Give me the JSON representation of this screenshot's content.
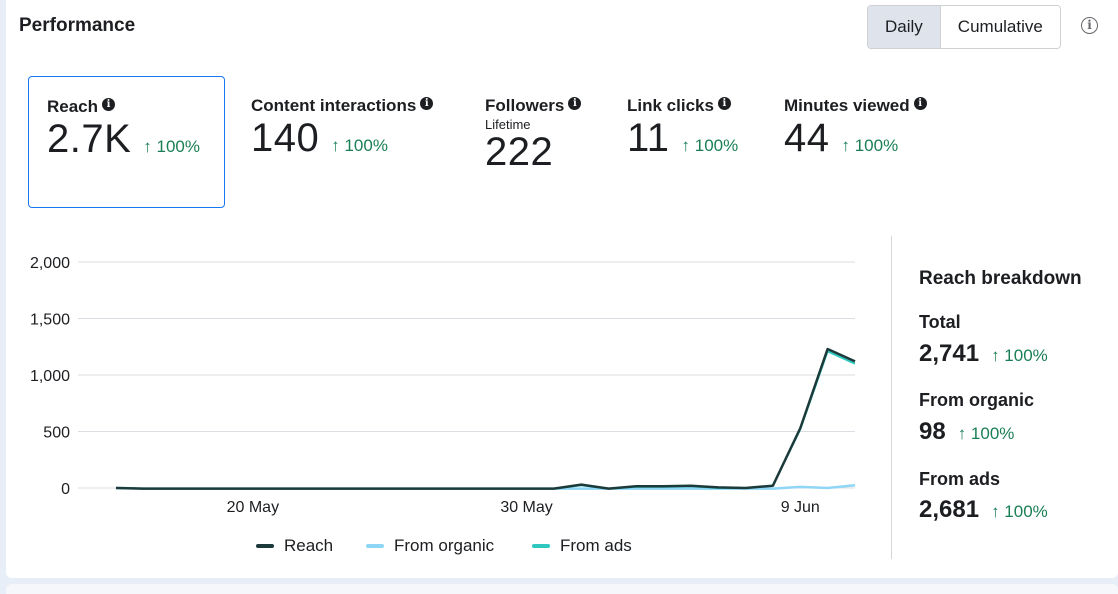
{
  "header": {
    "title": "Performance"
  },
  "toggle": {
    "daily": "Daily",
    "cumulative": "Cumulative"
  },
  "metrics": [
    {
      "label": "Reach",
      "value": "2.7K",
      "change": "↑ 100%"
    },
    {
      "label": "Content interactions",
      "value": "140",
      "change": "↑ 100%"
    },
    {
      "label": "Followers",
      "sub": "Lifetime",
      "value": "222"
    },
    {
      "label": "Link clicks",
      "value": "11",
      "change": "↑ 100%"
    },
    {
      "label": "Minutes viewed",
      "value": "44",
      "change": "↑ 100%"
    }
  ],
  "breakdown": {
    "title": "Reach breakdown",
    "items": [
      {
        "label": "Total",
        "value": "2,741",
        "change": "↑ 100%"
      },
      {
        "label": "From organic",
        "value": "98",
        "change": "↑ 100%"
      },
      {
        "label": "From ads",
        "value": "2,681",
        "change": "↑ 100%"
      }
    ]
  },
  "colors": {
    "accent": "#1877f2",
    "positive": "#1a7f55",
    "reach": "#1c3a3a",
    "organic": "#8fd6f6",
    "ads": "#2ec8c1"
  },
  "chart_data": {
    "type": "line",
    "ylim": [
      0,
      2000
    ],
    "yticks": [
      "2,000",
      "1,500",
      "1,000",
      "500",
      "0"
    ],
    "ytick_values": [
      2000,
      1500,
      1000,
      500,
      0
    ],
    "xticks": [
      {
        "label": "20 May",
        "index": 5
      },
      {
        "label": "30 May",
        "index": 15
      },
      {
        "label": "9 Jun",
        "index": 25
      }
    ],
    "dates": [
      "15 May",
      "16 May",
      "17 May",
      "18 May",
      "19 May",
      "20 May",
      "21 May",
      "22 May",
      "23 May",
      "24 May",
      "25 May",
      "26 May",
      "27 May",
      "28 May",
      "29 May",
      "30 May",
      "31 May",
      "1 Jun",
      "2 Jun",
      "3 Jun",
      "4 Jun",
      "5 Jun",
      "6 Jun",
      "7 Jun",
      "8 Jun",
      "9 Jun",
      "10 Jun",
      "11 Jun"
    ],
    "series": [
      {
        "name": "Reach",
        "values": [
          0,
          -5,
          -5,
          -5,
          -5,
          -5,
          -5,
          -5,
          -5,
          -5,
          -5,
          -5,
          -5,
          -5,
          -5,
          -5,
          -5,
          30,
          -5,
          15,
          15,
          20,
          5,
          0,
          20,
          530,
          1230,
          1120
        ]
      },
      {
        "name": "From organic",
        "values": [
          0,
          -5,
          -5,
          -5,
          -5,
          -5,
          -5,
          -5,
          -5,
          -5,
          -5,
          -5,
          -5,
          -5,
          -5,
          -5,
          -5,
          -5,
          -5,
          -5,
          -5,
          -5,
          -5,
          -5,
          -5,
          10,
          0,
          25
        ]
      },
      {
        "name": "From ads",
        "values": [
          0,
          -5,
          -5,
          -5,
          -5,
          -5,
          -5,
          -5,
          -5,
          -5,
          -5,
          -5,
          -5,
          -5,
          -5,
          -5,
          -5,
          25,
          -5,
          10,
          10,
          15,
          0,
          0,
          20,
          520,
          1210,
          1100
        ]
      }
    ]
  }
}
